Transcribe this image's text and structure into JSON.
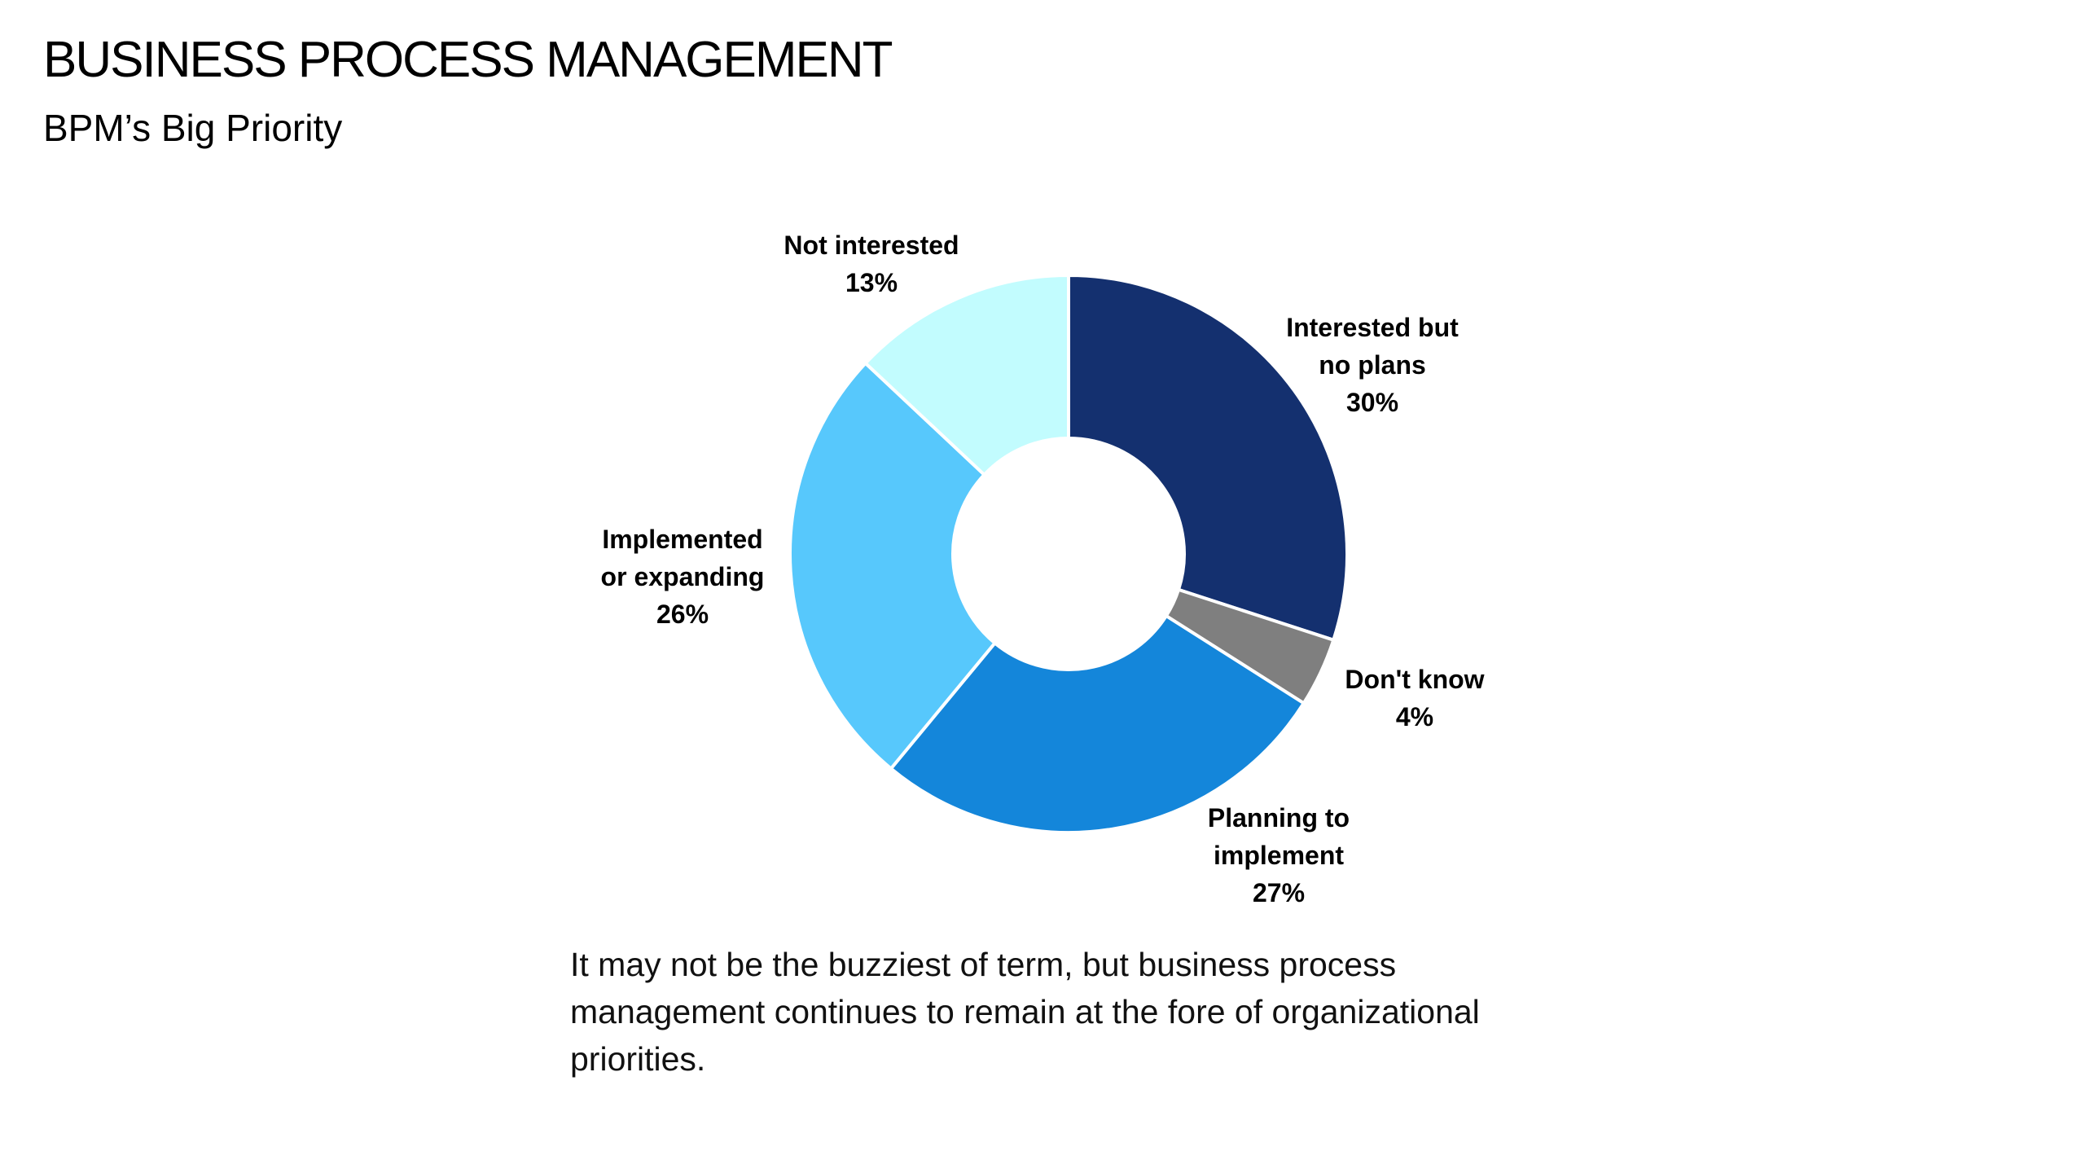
{
  "slide": {
    "title": "BUSINESS PROCESS MANAGEMENT",
    "subtitle": "BPM’s Big Priority",
    "caption": "It may not be the buzziest of term, but business process management continues to remain at the fore of organizational priorities."
  },
  "chart_data": {
    "type": "pie",
    "variant": "donut",
    "start_angle_deg": 0,
    "direction": "clockwise",
    "slices": [
      {
        "label": "Interested but no plans",
        "value": 30,
        "display": "30%",
        "color": "#14306F"
      },
      {
        "label": "Don't know",
        "value": 4,
        "display": "4%",
        "color": "#7F7F7F"
      },
      {
        "label": "Planning to implement",
        "value": 27,
        "display": "27%",
        "color": "#1486DA"
      },
      {
        "label": "Implemented or expanding",
        "value": 26,
        "display": "26%",
        "color": "#57C8FC"
      },
      {
        "label": "Not interested",
        "value": 13,
        "display": "13%",
        "color": "#C2FCFE"
      }
    ]
  }
}
